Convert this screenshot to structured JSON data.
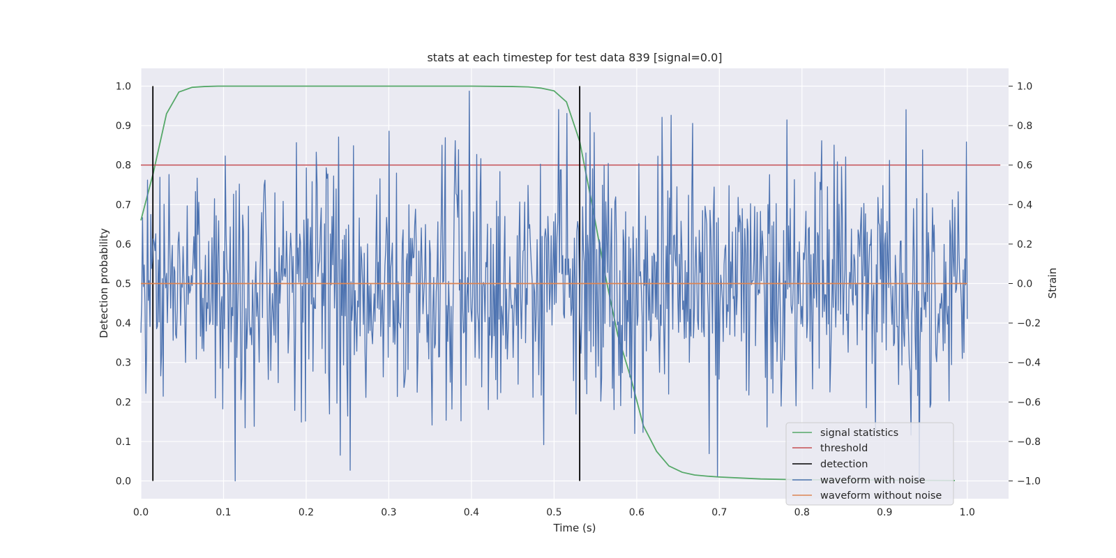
{
  "chart_data": {
    "type": "line",
    "title": "stats at each timestep for test data 839 [signal=0.0]",
    "xlabel": "Time (s)",
    "ylabel": "Detection probability",
    "y2label": "Strain",
    "xlim": [
      0.0,
      1.05
    ],
    "ylim": [
      -0.045,
      1.045
    ],
    "y2lim": [
      -1.09,
      1.09
    ],
    "xticks": [
      "0.0",
      "0.1",
      "0.2",
      "0.3",
      "0.4",
      "0.5",
      "0.6",
      "0.7",
      "0.8",
      "0.9",
      "1.0"
    ],
    "yticks": [
      "0.0",
      "0.1",
      "0.2",
      "0.3",
      "0.4",
      "0.5",
      "0.6",
      "0.7",
      "0.8",
      "0.9",
      "1.0"
    ],
    "y2ticks": [
      "−1.0",
      "−0.8",
      "−0.6",
      "−0.4",
      "−0.2",
      "0.0",
      "0.2",
      "0.4",
      "0.6",
      "0.8",
      "1.0"
    ],
    "grid": true,
    "legend_position": "lower-right",
    "colors": {
      "signal_statistics": "#55a868",
      "threshold": "#c44e52",
      "detection": "#000000",
      "waveform_with_noise": "#4c72b0",
      "waveform_without_noise": "#dd8452",
      "plot_background": "#eaeaf2",
      "grid": "#ffffff"
    },
    "series": [
      {
        "name": "signal statistics",
        "axis": "left",
        "x": [
          0.0,
          0.015,
          0.031,
          0.046,
          0.062,
          0.077,
          0.093,
          0.2,
          0.3,
          0.4,
          0.45,
          0.469,
          0.484,
          0.5,
          0.515,
          0.531,
          0.546,
          0.562,
          0.577,
          0.593,
          0.608,
          0.624,
          0.639,
          0.655,
          0.67,
          0.686,
          0.7,
          0.75,
          0.8,
          0.9,
          0.985
        ],
        "y": [
          0.66,
          0.78,
          0.93,
          0.985,
          0.997,
          0.999,
          1.0,
          1.0,
          1.0,
          1.0,
          0.999,
          0.998,
          0.995,
          0.988,
          0.96,
          0.86,
          0.7,
          0.52,
          0.37,
          0.26,
          0.14,
          0.075,
          0.038,
          0.022,
          0.015,
          0.012,
          0.01,
          0.005,
          0.003,
          0.002,
          0.001
        ]
      },
      {
        "name": "threshold",
        "axis": "left",
        "x": [
          0.0,
          1.04
        ],
        "y": [
          0.8,
          0.8
        ]
      },
      {
        "name": "detection",
        "axis": "left",
        "x": [
          0.0145,
          0.531
        ],
        "y": [
          0.0,
          1.0
        ]
      },
      {
        "name": "waveform with noise",
        "axis": "right",
        "range": [
          -1.0,
          1.0
        ],
        "seed": 839
      },
      {
        "name": "waveform without noise",
        "axis": "right",
        "x": [
          0.0,
          1.0
        ],
        "y": [
          0.0,
          0.0
        ]
      }
    ]
  }
}
